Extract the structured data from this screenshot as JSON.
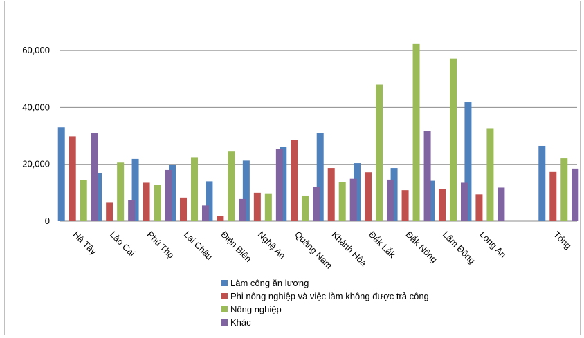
{
  "chart_data": {
    "type": "bar",
    "categories": [
      "Hà Tây",
      "Lào Cai",
      "Phú Thọ",
      "Lai Châu",
      "Điện Biên",
      "Nghệ An",
      "Quảng Nam",
      "Khánh Hòa",
      "Đắk Lắk",
      "Đắk Nông",
      "Lâm Đồng",
      "Long An",
      "",
      "Tổng"
    ],
    "series": [
      {
        "name": "Làm công ăn lương",
        "color": "#4f81bd",
        "values": [
          33000,
          16800,
          21900,
          19900,
          14000,
          21300,
          26100,
          31000,
          20400,
          18700,
          14200,
          41800,
          null,
          26500
        ]
      },
      {
        "name": "Phi nông nghiệp và việc làm không được trả công",
        "color": "#c0504d",
        "values": [
          29800,
          6700,
          13500,
          8300,
          1700,
          10000,
          28600,
          18700,
          17200,
          10900,
          11400,
          9400,
          null,
          17300
        ]
      },
      {
        "name": "Nông nghiệp",
        "color": "#9bbb59",
        "values": [
          14400,
          20600,
          12800,
          22500,
          24500,
          9800,
          9000,
          13700,
          48000,
          62500,
          57200,
          32700,
          null,
          22100
        ]
      },
      {
        "name": "Khác",
        "color": "#8064a2",
        "values": [
          31100,
          7300,
          18000,
          5500,
          7800,
          25500,
          12100,
          14900,
          14600,
          31700,
          13500,
          11800,
          null,
          18500
        ]
      }
    ],
    "yticks": [
      0,
      20000,
      40000,
      60000
    ],
    "ytick_labels": [
      "0",
      "20,000",
      "40,000",
      "60,000"
    ],
    "ylim": [
      0,
      70000
    ],
    "grid": true,
    "legend_position": "bottom"
  }
}
